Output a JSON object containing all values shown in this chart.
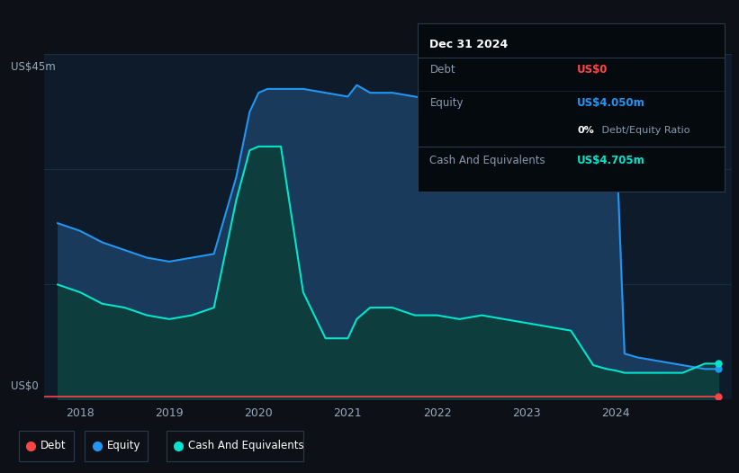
{
  "bg_color": "#0d1117",
  "plot_bg_color": "#0d1b2a",
  "grid_color": "#1e3048",
  "title_y_label": "US$45m",
  "zero_label": "US$0",
  "x_ticks": [
    2018,
    2019,
    2020,
    2021,
    2022,
    2023,
    2024
  ],
  "ylim": [
    0,
    45
  ],
  "xlim_start": 2017.6,
  "xlim_end": 2025.3,
  "equity_color": "#2196f3",
  "cash_color": "#00e5cc",
  "debt_color": "#ff4444",
  "equity_fill": "#1a3a5c",
  "cash_fill": "#0d3d3d",
  "tooltip_bg": "#050a0f",
  "tooltip_title": "Dec 31 2024",
  "tooltip_debt_label": "Debt",
  "tooltip_debt_value": "US$0",
  "tooltip_equity_label": "Equity",
  "tooltip_equity_value": "US$4.050m",
  "tooltip_ratio_bold": "0%",
  "tooltip_ratio_rest": " Debt/Equity Ratio",
  "tooltip_cash_label": "Cash And Equivalents",
  "tooltip_cash_value": "US$4.705m",
  "legend_labels": [
    "Debt",
    "Equity",
    "Cash And Equivalents"
  ],
  "equity_x": [
    2017.75,
    2018.0,
    2018.25,
    2018.5,
    2018.75,
    2019.0,
    2019.25,
    2019.5,
    2019.75,
    2019.9,
    2020.0,
    2020.1,
    2020.25,
    2020.5,
    2020.75,
    2021.0,
    2021.1,
    2021.25,
    2021.5,
    2021.75,
    2022.0,
    2022.25,
    2022.5,
    2022.75,
    2023.0,
    2023.25,
    2023.5,
    2023.75,
    2023.9,
    2024.0,
    2024.1,
    2024.25,
    2024.5,
    2024.75,
    2025.0,
    2025.15
  ],
  "equity_y": [
    23.0,
    22.0,
    20.5,
    19.5,
    18.5,
    18.0,
    18.5,
    19.0,
    29.0,
    37.5,
    40.0,
    40.5,
    40.5,
    40.5,
    40.0,
    39.5,
    41.0,
    40.0,
    40.0,
    39.5,
    39.0,
    38.5,
    38.0,
    37.5,
    37.0,
    36.5,
    36.0,
    36.0,
    36.0,
    36.0,
    6.0,
    5.5,
    5.0,
    4.5,
    4.0,
    4.0
  ],
  "cash_x": [
    2017.75,
    2018.0,
    2018.25,
    2018.5,
    2018.75,
    2019.0,
    2019.25,
    2019.5,
    2019.75,
    2019.9,
    2020.0,
    2020.1,
    2020.25,
    2020.5,
    2020.75,
    2021.0,
    2021.1,
    2021.25,
    2021.5,
    2021.75,
    2022.0,
    2022.25,
    2022.5,
    2022.75,
    2023.0,
    2023.25,
    2023.5,
    2023.75,
    2023.9,
    2024.0,
    2024.1,
    2024.25,
    2024.5,
    2024.75,
    2025.0,
    2025.15
  ],
  "cash_y": [
    15.0,
    14.0,
    12.5,
    12.0,
    11.0,
    10.5,
    11.0,
    12.0,
    26.0,
    32.5,
    33.0,
    33.0,
    33.0,
    14.0,
    8.0,
    8.0,
    10.5,
    12.0,
    12.0,
    11.0,
    11.0,
    10.5,
    11.0,
    10.5,
    10.0,
    9.5,
    9.0,
    4.5,
    4.0,
    3.8,
    3.5,
    3.5,
    3.5,
    3.5,
    4.7,
    4.7
  ],
  "debt_x": [
    2017.6,
    2018.5,
    2019.5,
    2020.5,
    2021.5,
    2022.5,
    2023.5,
    2024.5,
    2025.15
  ],
  "debt_y": [
    0.4,
    0.4,
    0.4,
    0.4,
    0.4,
    0.4,
    0.4,
    0.4,
    0.4
  ]
}
